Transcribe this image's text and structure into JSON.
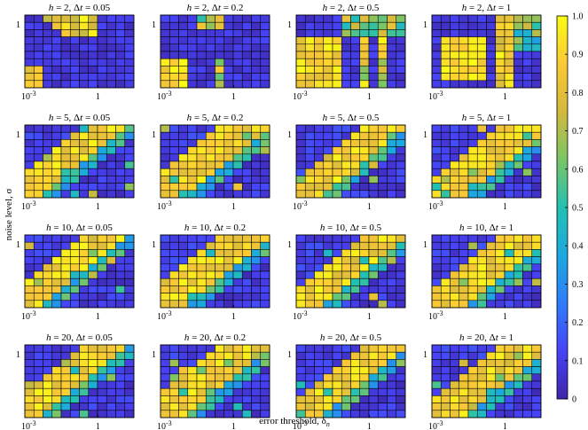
{
  "chart_data": {
    "type": "heatmap",
    "grid": {
      "rows": 4,
      "cols": 4,
      "cells_x": 12,
      "cells_y": 10
    },
    "xlabel": "error threshold, δ",
    "xlabel_sub": "n",
    "ylabel": "noise level, σ",
    "x_ticks": [
      {
        "base": "10",
        "exp": "-3"
      },
      {
        "text": "1"
      }
    ],
    "y_ticks": [
      "1"
    ],
    "colorbar": {
      "min": 0,
      "max": 1,
      "ticks": [
        "0",
        "0.1",
        "0.2",
        "0.3",
        "0.4",
        "0.5",
        "0.6",
        "0.7",
        "0.8",
        "0.9",
        "1.0"
      ],
      "colormap": [
        "#3e26a8",
        "#4743f7",
        "#2f7cfa",
        "#1ca9df",
        "#23c0b2",
        "#7bc565",
        "#d2b93d",
        "#fbc935",
        "#f9fb15"
      ]
    },
    "panels": [
      {
        "h": "2",
        "dt": "0.05",
        "kind": "a",
        "p": 0
      },
      {
        "h": "2",
        "dt": "0.2",
        "kind": "a",
        "p": 1
      },
      {
        "h": "2",
        "dt": "0.5",
        "kind": "a",
        "p": 2
      },
      {
        "h": "2",
        "dt": "1",
        "kind": "a",
        "p": 3
      },
      {
        "h": "5",
        "dt": "0.05",
        "kind": "b",
        "p": 0,
        "shift": 0.0
      },
      {
        "h": "5",
        "dt": "0.2",
        "kind": "b",
        "p": 1,
        "shift": 0.5
      },
      {
        "h": "5",
        "dt": "0.5",
        "kind": "b",
        "p": 2,
        "shift": 1.0
      },
      {
        "h": "5",
        "dt": "1",
        "kind": "b",
        "p": 3,
        "shift": 1.5
      },
      {
        "h": "10",
        "dt": "0.05",
        "kind": "b",
        "p": 4,
        "shift": 0.0
      },
      {
        "h": "10",
        "dt": "0.2",
        "kind": "b",
        "p": 5,
        "shift": 0.5
      },
      {
        "h": "10",
        "dt": "0.5",
        "kind": "b",
        "p": 6,
        "shift": 1.0
      },
      {
        "h": "10",
        "dt": "1",
        "kind": "b",
        "p": 7,
        "shift": 1.5
      },
      {
        "h": "20",
        "dt": "0.05",
        "kind": "b",
        "p": 8,
        "shift": 0.0
      },
      {
        "h": "20",
        "dt": "0.2",
        "kind": "b",
        "p": 9,
        "shift": 0.5
      },
      {
        "h": "20",
        "dt": "0.5",
        "kind": "b",
        "p": 10,
        "shift": 1.0
      },
      {
        "h": "20",
        "dt": "1",
        "kind": "b",
        "p": 11,
        "shift": 1.5
      }
    ]
  }
}
